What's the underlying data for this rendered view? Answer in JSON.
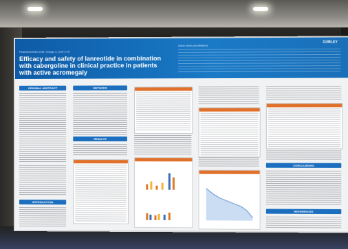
{
  "poster": {
    "banner_small_text": "Presented at ENDO 2018 | Chicago, IL | June 17-20",
    "title": "Efficacy and safety of lanreotide in combination with cabergoline in clinical practice in patients with active acromegaly",
    "logo_text": "GUBLEY",
    "authors": "Author names and affiliations",
    "sections": {
      "abstract": "ORIGINAL ABSTRACT",
      "methods": "METHODS",
      "results": "RESULTS",
      "introduction": "INTRODUCTION",
      "conclusions": "CONCLUSIONS",
      "references": "REFERENCES"
    }
  },
  "colors": {
    "banner": "#1a7ac6",
    "section_blue": "#1c6fbf",
    "section_orange": "#e0702a",
    "poster_bg": "#f1f2f3"
  }
}
